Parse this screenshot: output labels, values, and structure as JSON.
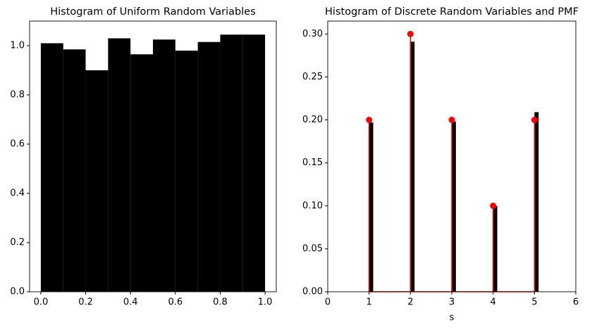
{
  "chart_data": [
    {
      "type": "histogram",
      "title": "Histogram of Uniform Random Variables",
      "bins": [
        0.0,
        0.1,
        0.2,
        0.3,
        0.4,
        0.5,
        0.6,
        0.7,
        0.8,
        0.9,
        1.0
      ],
      "values": [
        1.01,
        0.985,
        0.9,
        1.03,
        0.965,
        1.025,
        0.98,
        1.015,
        1.045,
        1.045
      ],
      "color": "#000000",
      "xlim": [
        -0.05,
        1.05
      ],
      "xticks": [
        {
          "value": 0,
          "label": "0.0"
        },
        {
          "value": 0.2,
          "label": "0.2"
        },
        {
          "value": 0.4,
          "label": "0.4"
        },
        {
          "value": 0.6,
          "label": "0.6"
        },
        {
          "value": 0.8,
          "label": "0.8"
        },
        {
          "value": 1,
          "label": "1.0"
        }
      ],
      "ylim": [
        0,
        1.1
      ],
      "yticks": [
        {
          "value": 0,
          "label": "0.0"
        },
        {
          "value": 0.2,
          "label": "0.2"
        },
        {
          "value": 0.4,
          "label": "0.4"
        },
        {
          "value": 0.6,
          "label": "0.6"
        },
        {
          "value": 0.8,
          "label": "0.8"
        },
        {
          "value": 1,
          "label": "1.0"
        }
      ]
    },
    {
      "type": "stem",
      "title": "Histogram of Discrete Random Variables and PMF",
      "xlabel": "s",
      "x": [
        1,
        2,
        3,
        4,
        5
      ],
      "series": [
        {
          "kind": "bar",
          "color": "#000000",
          "values": [
            0.197,
            0.291,
            0.198,
            0.1,
            0.209
          ]
        },
        {
          "kind": "stem",
          "color": "#ff0000",
          "values": [
            0.2,
            0.3,
            0.2,
            0.1,
            0.2
          ]
        }
      ],
      "xlim": [
        0,
        6
      ],
      "xticks": [
        0,
        1,
        2,
        3,
        4,
        5,
        6
      ],
      "ylim": [
        0,
        0.315
      ],
      "yticks": [
        {
          "value": 0,
          "label": "0.00"
        },
        {
          "value": 0.05,
          "label": "0.05"
        },
        {
          "value": 0.1,
          "label": "0.10"
        },
        {
          "value": 0.15,
          "label": "0.15"
        },
        {
          "value": 0.2,
          "label": "0.20"
        },
        {
          "value": 0.25,
          "label": "0.25"
        },
        {
          "value": 0.3,
          "label": "0.30"
        }
      ]
    }
  ]
}
